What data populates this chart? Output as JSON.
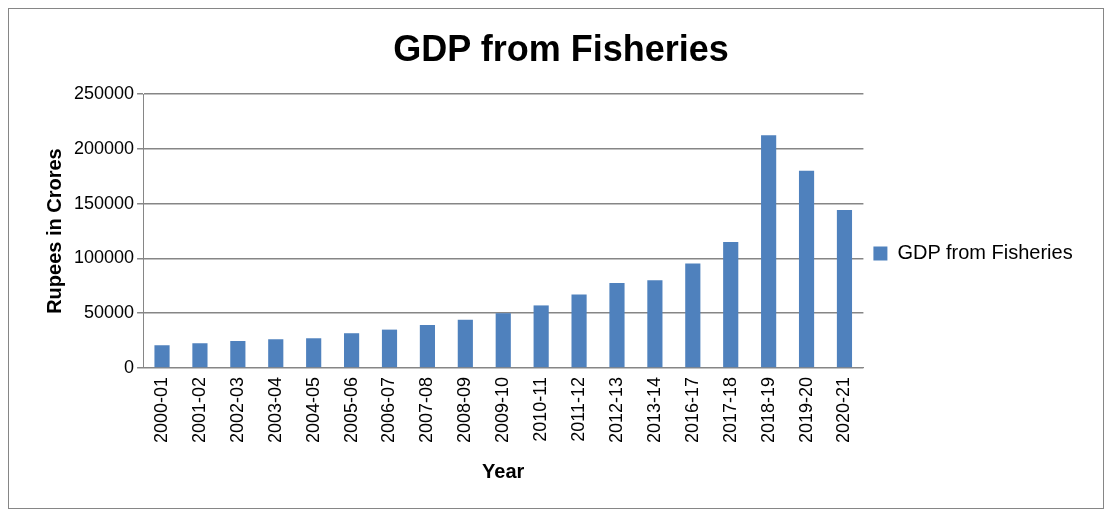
{
  "chart_data": {
    "type": "bar",
    "title": "GDP from Fisheries",
    "xlabel": "Year",
    "ylabel": "Rupees in Crores",
    "categories": [
      "2000-01",
      "2001-02",
      "2002-03",
      "2003-04",
      "2004-05",
      "2005-06",
      "2006-07",
      "2007-08",
      "2008-09",
      "2009-10",
      "2010-11",
      "2011-12",
      "2012-13",
      "2013-14",
      "2016-17",
      "2017-18",
      "2018-19",
      "2019-20",
      "2020-21"
    ],
    "series": [
      {
        "name": "GDP from Fisheries",
        "color": "#4f81bd",
        "values": [
          20800,
          22500,
          24600,
          26200,
          27100,
          31700,
          35000,
          39200,
          44000,
          50000,
          57100,
          67100,
          77500,
          80000,
          95400,
          115000,
          212500,
          180000,
          144200
        ]
      }
    ],
    "ylim": [
      0,
      250000
    ],
    "yticks": [
      0,
      50000,
      100000,
      150000,
      200000,
      250000
    ],
    "grid": "y",
    "legend": "right"
  }
}
